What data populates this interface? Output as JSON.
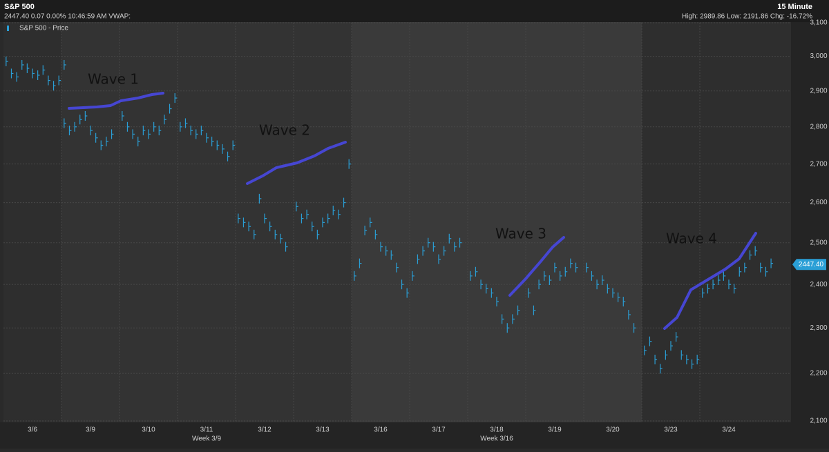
{
  "chart_data": {
    "type": "price-ticks",
    "title": "S&P 500",
    "quote_line": "2447.40 0.07 0.00% 10:46:59 AM VWAP:",
    "interval": "15 Minute",
    "range_line": "High: 2989.86 Low: 2191.86 Chg: -16.72%",
    "series_name": "S&P 500 - Price",
    "color": "#2a9fd6",
    "log_scale": true,
    "grid": true,
    "ylim": [
      2100,
      3100
    ],
    "yticks": [
      {
        "value": 2100,
        "label": "2,100"
      },
      {
        "value": 2200,
        "label": "2,200"
      },
      {
        "value": 2300,
        "label": "2,300"
      },
      {
        "value": 2400,
        "label": "2,400"
      },
      {
        "value": 2500,
        "label": "2,500"
      },
      {
        "value": 2600,
        "label": "2,600"
      },
      {
        "value": 2700,
        "label": "2,700"
      },
      {
        "value": 2800,
        "label": "2,800"
      },
      {
        "value": 2900,
        "label": "2,900"
      },
      {
        "value": 3000,
        "label": "3,000"
      },
      {
        "value": 3100,
        "label": "3,100"
      }
    ],
    "last_price": {
      "value": 2447.4,
      "label": "2447.40"
    },
    "days": [
      {
        "label": "3/6",
        "prices": [
          2985,
          2950,
          2940,
          2975,
          2965,
          2950,
          2945,
          2960,
          2930,
          2915,
          2930,
          2975
        ]
      },
      {
        "label": "3/9",
        "prices": [
          2810,
          2790,
          2800,
          2820,
          2830,
          2790,
          2770,
          2750,
          2760,
          2780
        ]
      },
      {
        "label": "3/10",
        "prices": [
          2830,
          2800,
          2780,
          2760,
          2790,
          2780,
          2800,
          2790,
          2820,
          2850,
          2880
        ]
      },
      {
        "label": "3/11",
        "prices": [
          2800,
          2810,
          2790,
          2780,
          2790,
          2770,
          2760,
          2750,
          2740,
          2720,
          2750
        ]
      },
      {
        "label": "3/12",
        "prices": [
          2560,
          2550,
          2540,
          2520,
          2610,
          2560,
          2540,
          2520,
          2510,
          2490
        ]
      },
      {
        "label": "3/13",
        "prices": [
          2590,
          2560,
          2570,
          2540,
          2520,
          2550,
          2560,
          2580,
          2570,
          2600,
          2700
        ]
      },
      {
        "label": "3/16",
        "prices": [
          2420,
          2450,
          2530,
          2550,
          2520,
          2490,
          2480,
          2470,
          2440,
          2400,
          2380
        ]
      },
      {
        "label": "3/17",
        "prices": [
          2420,
          2460,
          2480,
          2500,
          2490,
          2460,
          2480,
          2510,
          2490,
          2500
        ]
      },
      {
        "label": "3/18",
        "prices": [
          2420,
          2430,
          2400,
          2390,
          2380,
          2360,
          2320,
          2300,
          2320,
          2340
        ]
      },
      {
        "label": "3/19",
        "prices": [
          2380,
          2340,
          2400,
          2420,
          2410,
          2440,
          2420,
          2430,
          2450,
          2440
        ]
      },
      {
        "label": "3/20",
        "prices": [
          2440,
          2420,
          2400,
          2410,
          2390,
          2380,
          2370,
          2360,
          2330,
          2300
        ]
      },
      {
        "label": "3/23",
        "prices": [
          2250,
          2270,
          2230,
          2210,
          2240,
          2260,
          2280,
          2240,
          2230,
          2220,
          2230
        ]
      },
      {
        "label": "3/24",
        "prices": [
          2380,
          2390,
          2400,
          2410,
          2420,
          2400,
          2390,
          2430,
          2440,
          2470,
          2480,
          2440,
          2430,
          2450
        ]
      }
    ],
    "weeks": [
      "Week 3/9",
      "Week 3/16"
    ],
    "annotations": [
      "Wave 1",
      "Wave 2",
      "Wave 3",
      "Wave 4"
    ]
  }
}
